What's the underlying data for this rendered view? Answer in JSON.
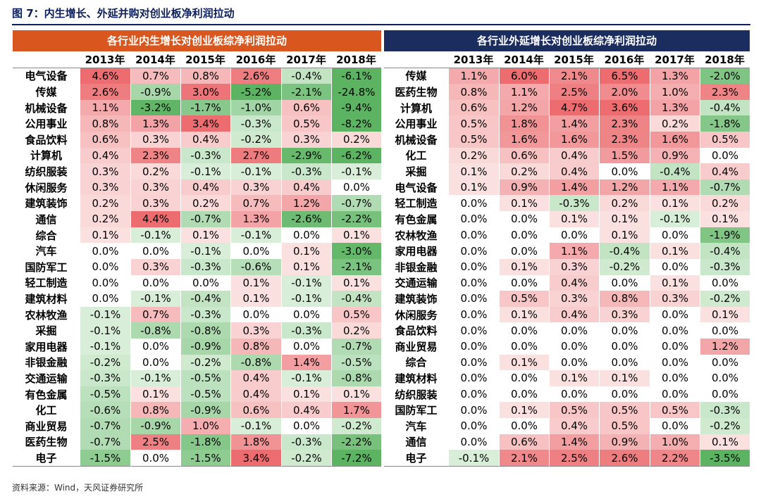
{
  "title": "图 7：内生增长、外延并购对创业板净利润拉动",
  "source": "资料来源：Wind，天风证券研究所",
  "panels": [
    {
      "header": "各行业内生增长对创业板综净利润拉动",
      "years": [
        "2013年",
        "2014年",
        "2015年",
        "2016年",
        "2017年",
        "2018年"
      ],
      "rows": [
        {
          "label": "电气设备",
          "values": [
            "4.6%",
            "0.7%",
            "0.8%",
            "2.6%",
            "-0.4%",
            "-6.1%"
          ]
        },
        {
          "label": "传媒",
          "values": [
            "2.6%",
            "-0.9%",
            "3.0%",
            "-5.2%",
            "-2.1%",
            "-24.8%"
          ]
        },
        {
          "label": "机械设备",
          "values": [
            "1.1%",
            "-3.2%",
            "-1.7%",
            "-1.0%",
            "0.6%",
            "-9.4%"
          ]
        },
        {
          "label": "公用事业",
          "values": [
            "0.8%",
            "1.3%",
            "3.4%",
            "-0.3%",
            "0.5%",
            "-8.2%"
          ]
        },
        {
          "label": "食品饮料",
          "values": [
            "0.6%",
            "0.3%",
            "0.4%",
            "-0.2%",
            "0.3%",
            "0.2%"
          ]
        },
        {
          "label": "计算机",
          "values": [
            "0.4%",
            "2.3%",
            "-0.3%",
            "2.7%",
            "-2.9%",
            "-6.2%"
          ]
        },
        {
          "label": "纺织服装",
          "values": [
            "0.3%",
            "0.2%",
            "-0.1%",
            "-0.1%",
            "-0.3%",
            "-0.1%"
          ]
        },
        {
          "label": "休闲服务",
          "values": [
            "0.3%",
            "0.3%",
            "0.4%",
            "0.3%",
            "0.4%",
            "0.0%"
          ]
        },
        {
          "label": "建筑装饰",
          "values": [
            "0.2%",
            "0.3%",
            "0.2%",
            "0.7%",
            "1.2%",
            "-0.7%"
          ]
        },
        {
          "label": "通信",
          "values": [
            "0.2%",
            "4.4%",
            "-0.7%",
            "1.3%",
            "-2.6%",
            "-2.2%"
          ]
        },
        {
          "label": "综合",
          "values": [
            "0.1%",
            "-0.1%",
            "0.1%",
            "-0.1%",
            "0.0%",
            "0.1%"
          ]
        },
        {
          "label": "汽车",
          "values": [
            "0.0%",
            "0.0%",
            "-0.1%",
            "0.0%",
            "0.1%",
            "-3.0%"
          ]
        },
        {
          "label": "国防军工",
          "values": [
            "0.0%",
            "0.3%",
            "-0.3%",
            "-0.6%",
            "0.1%",
            "-2.1%"
          ]
        },
        {
          "label": "轻工制造",
          "values": [
            "0.0%",
            "0.0%",
            "0.0%",
            "0.1%",
            "-0.1%",
            "0.1%"
          ]
        },
        {
          "label": "建筑材料",
          "values": [
            "0.0%",
            "-0.1%",
            "-0.4%",
            "0.1%",
            "-0.1%",
            "-0.4%"
          ]
        },
        {
          "label": "农林牧渔",
          "values": [
            "-0.1%",
            "0.7%",
            "-0.3%",
            "0.0%",
            "0.0%",
            "0.5%"
          ]
        },
        {
          "label": "采掘",
          "values": [
            "-0.1%",
            "-0.8%",
            "-0.8%",
            "0.3%",
            "-0.3%",
            "0.2%"
          ]
        },
        {
          "label": "家用电器",
          "values": [
            "-0.1%",
            "0.0%",
            "-0.9%",
            "0.8%",
            "0.0%",
            "-0.7%"
          ]
        },
        {
          "label": "非银金融",
          "values": [
            "-0.2%",
            "0.0%",
            "-0.2%",
            "-0.8%",
            "1.4%",
            "-0.5%"
          ]
        },
        {
          "label": "交通运输",
          "values": [
            "-0.3%",
            "-0.1%",
            "-0.5%",
            "0.4%",
            "-0.1%",
            "-0.8%"
          ]
        },
        {
          "label": "有色金属",
          "values": [
            "-0.5%",
            "0.1%",
            "-0.5%",
            "0.4%",
            "0.1%",
            "0.1%"
          ]
        },
        {
          "label": "化工",
          "values": [
            "-0.6%",
            "0.8%",
            "-0.9%",
            "0.6%",
            "0.4%",
            "1.7%"
          ]
        },
        {
          "label": "商业贸易",
          "values": [
            "-0.7%",
            "-0.9%",
            "1.0%",
            "-0.1%",
            "0.0%",
            "-0.2%"
          ]
        },
        {
          "label": "医药生物",
          "values": [
            "-0.7%",
            "2.5%",
            "-1.8%",
            "1.8%",
            "-0.3%",
            "-2.2%"
          ]
        },
        {
          "label": "电子",
          "values": [
            "-1.5%",
            "0.0%",
            "-1.5%",
            "3.4%",
            "-0.2%",
            "-7.2%"
          ]
        }
      ]
    },
    {
      "header": "各行业外延增长对创业板综净利润拉动",
      "years": [
        "2013年",
        "2014年",
        "2015年",
        "2016年",
        "2017年",
        "2018年"
      ],
      "rows": [
        {
          "label": "传媒",
          "values": [
            "1.1%",
            "6.0%",
            "2.1%",
            "6.5%",
            "1.3%",
            "-2.0%"
          ]
        },
        {
          "label": "医药生物",
          "values": [
            "0.8%",
            "1.1%",
            "2.5%",
            "2.0%",
            "1.0%",
            "2.3%"
          ]
        },
        {
          "label": "计算机",
          "values": [
            "0.6%",
            "1.2%",
            "4.7%",
            "3.6%",
            "1.3%",
            "-0.4%"
          ]
        },
        {
          "label": "公用事业",
          "values": [
            "0.5%",
            "1.8%",
            "1.4%",
            "2.3%",
            "0.2%",
            "-1.8%"
          ]
        },
        {
          "label": "机械设备",
          "values": [
            "0.5%",
            "1.6%",
            "1.6%",
            "2.3%",
            "1.6%",
            "0.5%"
          ]
        },
        {
          "label": "化工",
          "values": [
            "0.2%",
            "0.6%",
            "0.4%",
            "1.5%",
            "0.9%",
            "0.0%"
          ]
        },
        {
          "label": "采掘",
          "values": [
            "0.1%",
            "0.2%",
            "0.4%",
            "0.0%",
            "-0.4%",
            "0.4%"
          ]
        },
        {
          "label": "电气设备",
          "values": [
            "0.1%",
            "0.9%",
            "1.4%",
            "1.2%",
            "1.1%",
            "-0.7%"
          ]
        },
        {
          "label": "轻工制造",
          "values": [
            "0.0%",
            "0.1%",
            "-0.3%",
            "0.2%",
            "0.1%",
            "0.2%"
          ]
        },
        {
          "label": "有色金属",
          "values": [
            "0.0%",
            "0.0%",
            "0.1%",
            "0.1%",
            "-0.1%",
            "0.1%"
          ]
        },
        {
          "label": "农林牧渔",
          "values": [
            "0.0%",
            "0.0%",
            "0.0%",
            "0.1%",
            "0.0%",
            "-1.9%"
          ]
        },
        {
          "label": "家用电器",
          "values": [
            "0.0%",
            "0.0%",
            "1.1%",
            "-0.4%",
            "0.1%",
            "-0.4%"
          ]
        },
        {
          "label": "非银金融",
          "values": [
            "0.0%",
            "0.1%",
            "0.3%",
            "-0.2%",
            "0.0%",
            "-0.3%"
          ]
        },
        {
          "label": "交通运输",
          "values": [
            "0.0%",
            "0.0%",
            "0.4%",
            "0.0%",
            "0.1%",
            "0.0%"
          ]
        },
        {
          "label": "建筑装饰",
          "values": [
            "0.0%",
            "0.5%",
            "0.3%",
            "0.8%",
            "0.3%",
            "-0.2%"
          ]
        },
        {
          "label": "休闲服务",
          "values": [
            "0.0%",
            "0.1%",
            "0.4%",
            "0.3%",
            "0.0%",
            "0.1%"
          ]
        },
        {
          "label": "食品饮料",
          "values": [
            "0.0%",
            "0.0%",
            "0.0%",
            "0.0%",
            "0.0%",
            "0.0%"
          ]
        },
        {
          "label": "商业贸易",
          "values": [
            "0.0%",
            "0.0%",
            "0.0%",
            "0.0%",
            "0.0%",
            "1.2%"
          ]
        },
        {
          "label": "综合",
          "values": [
            "0.0%",
            "0.1%",
            "0.0%",
            "0.0%",
            "0.0%",
            "0.0%"
          ]
        },
        {
          "label": "建筑材料",
          "values": [
            "0.0%",
            "0.0%",
            "0.1%",
            "0.1%",
            "0.0%",
            "0.0%"
          ]
        },
        {
          "label": "纺织服装",
          "values": [
            "0.0%",
            "0.0%",
            "0.0%",
            "0.0%",
            "0.0%",
            "0.0%"
          ]
        },
        {
          "label": "国防军工",
          "values": [
            "0.0%",
            "0.1%",
            "0.5%",
            "0.5%",
            "0.5%",
            "-0.3%"
          ]
        },
        {
          "label": "汽车",
          "values": [
            "0.0%",
            "0.0%",
            "0.4%",
            "0.5%",
            "0.0%",
            "-0.2%"
          ]
        },
        {
          "label": "通信",
          "values": [
            "0.0%",
            "0.6%",
            "1.4%",
            "0.9%",
            "1.0%",
            "0.1%"
          ]
        },
        {
          "label": "电子",
          "values": [
            "-0.1%",
            "2.1%",
            "2.5%",
            "2.6%",
            "2.2%",
            "-3.5%"
          ]
        }
      ]
    }
  ]
}
